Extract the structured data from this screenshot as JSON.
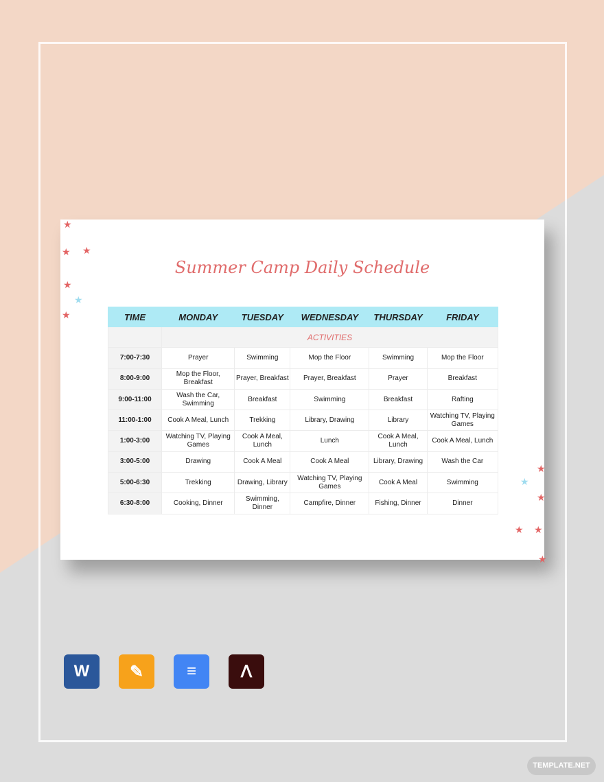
{
  "document": {
    "title": "Summer Camp Daily Schedule",
    "headers": [
      "TIME",
      "MONDAY",
      "TUESDAY",
      "WEDNESDAY",
      "THURSDAY",
      "FRIDAY"
    ],
    "section_label": "ACTIVITIES",
    "rows": [
      [
        "7:00-7:30",
        "Prayer",
        "Swimming",
        "Mop the Floor",
        "Swimming",
        "Mop the Floor"
      ],
      [
        "8:00-9:00",
        "Mop the Floor, Breakfast",
        "Prayer, Breakfast",
        "Prayer, Breakfast",
        "Prayer",
        "Breakfast"
      ],
      [
        "9:00-11:00",
        "Wash the Car, Swimming",
        "Breakfast",
        "Swimming",
        "Breakfast",
        "Rafting"
      ],
      [
        "11:00-1:00",
        "Cook A Meal, Lunch",
        "Trekking",
        "Library, Drawing",
        "Library",
        "Watching TV, Playing Games"
      ],
      [
        "1:00-3:00",
        "Watching TV, Playing Games",
        "Cook A Meal, Lunch",
        "Lunch",
        "Cook A Meal, Lunch",
        "Cook A Meal, Lunch"
      ],
      [
        "3:00-5:00",
        "Drawing",
        "Cook A Meal",
        "Cook A Meal",
        "Library, Drawing",
        "Wash the Car"
      ],
      [
        "5:00-6:30",
        "Trekking",
        "Drawing, Library",
        "Watching TV, Playing Games",
        "Cook A Meal",
        "Swimming"
      ],
      [
        "6:30-8:00",
        "Cooking, Dinner",
        "Swimming, Dinner",
        "Campfire, Dinner",
        "Fishing, Dinner",
        "Dinner"
      ]
    ],
    "colors": {
      "header_bg": "#aeeaf5",
      "title": "#e06b6b",
      "star_red": "#e36464",
      "star_blue": "#9fdcef"
    }
  },
  "format_icons": [
    {
      "name": "word-icon",
      "label": "W",
      "color": "#2b579a"
    },
    {
      "name": "pages-icon",
      "label": "✎",
      "color": "#f7a21b"
    },
    {
      "name": "google-docs-icon",
      "label": "≡",
      "color": "#4285f4"
    },
    {
      "name": "pdf-icon",
      "label": "ᐱ",
      "color": "#3a0d0d"
    }
  ],
  "watermark": "TEMPLATE.NET"
}
